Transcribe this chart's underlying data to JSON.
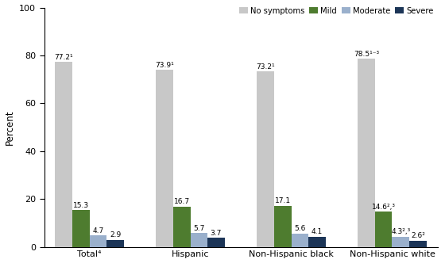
{
  "categories": [
    "Total⁴",
    "Hispanic",
    "Non-Hispanic black",
    "Non-Hispanic white"
  ],
  "series": {
    "No symptoms": [
      77.2,
      73.9,
      73.2,
      78.5
    ],
    "Mild": [
      15.3,
      16.7,
      17.1,
      14.6
    ],
    "Moderate": [
      4.7,
      5.7,
      5.6,
      4.3
    ],
    "Severe": [
      2.9,
      3.7,
      4.1,
      2.6
    ]
  },
  "labels": {
    "No symptoms": [
      "77.2¹",
      "73.9¹",
      "73.2¹",
      "78.5¹⁻³"
    ],
    "Mild": [
      "15.3",
      "16.7",
      "17.1",
      "14.6²,³"
    ],
    "Moderate": [
      "4.7",
      "5.7",
      "5.6",
      "4.3²,³"
    ],
    "Severe": [
      "2.9",
      "3.7",
      "4.1",
      "2.6²"
    ]
  },
  "colors": {
    "No symptoms": "#c8c8c8",
    "Mild": "#4e7c2f",
    "Moderate": "#9ab0cc",
    "Severe": "#1c3557"
  },
  "ylabel": "Percent",
  "ylim": [
    0,
    100
  ],
  "yticks": [
    0,
    20,
    40,
    60,
    80,
    100
  ],
  "bar_width": 0.17,
  "legend_order": [
    "No symptoms",
    "Mild",
    "Moderate",
    "Severe"
  ],
  "bg_color": "#ffffff"
}
